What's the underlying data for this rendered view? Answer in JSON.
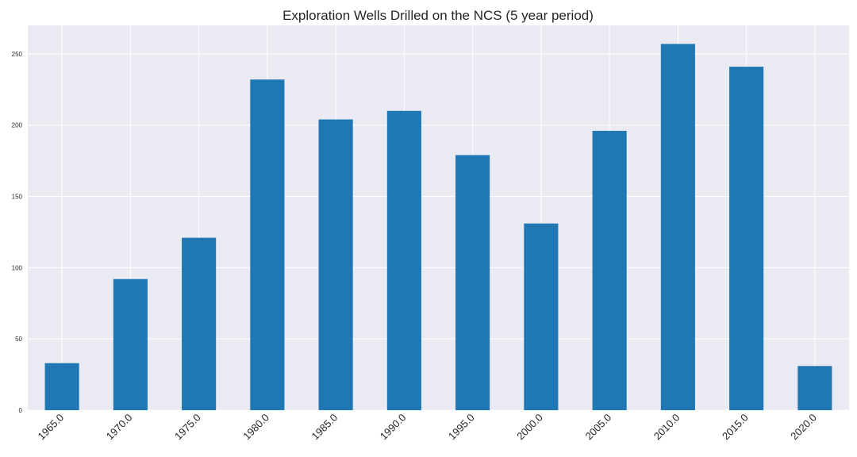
{
  "chart_data": {
    "type": "bar",
    "title": "Exploration Wells Drilled on the NCS (5 year period)",
    "xlabel": "",
    "ylabel": "",
    "categories": [
      "1965.0",
      "1970.0",
      "1975.0",
      "1980.0",
      "1985.0",
      "1990.0",
      "1995.0",
      "2000.0",
      "2005.0",
      "2010.0",
      "2015.0",
      "2020.0"
    ],
    "values": [
      33,
      92,
      121,
      232,
      204,
      210,
      179,
      131,
      196,
      257,
      241,
      31
    ],
    "ylim": [
      0,
      270
    ],
    "yticks": [
      "0",
      "50",
      "100",
      "150",
      "200",
      "250"
    ],
    "grid": true,
    "legend": "none",
    "colors": {
      "bar": "#1f77b4",
      "plot_background": "#eaeaf2",
      "grid": "#ffffff",
      "text": "#262626"
    }
  }
}
